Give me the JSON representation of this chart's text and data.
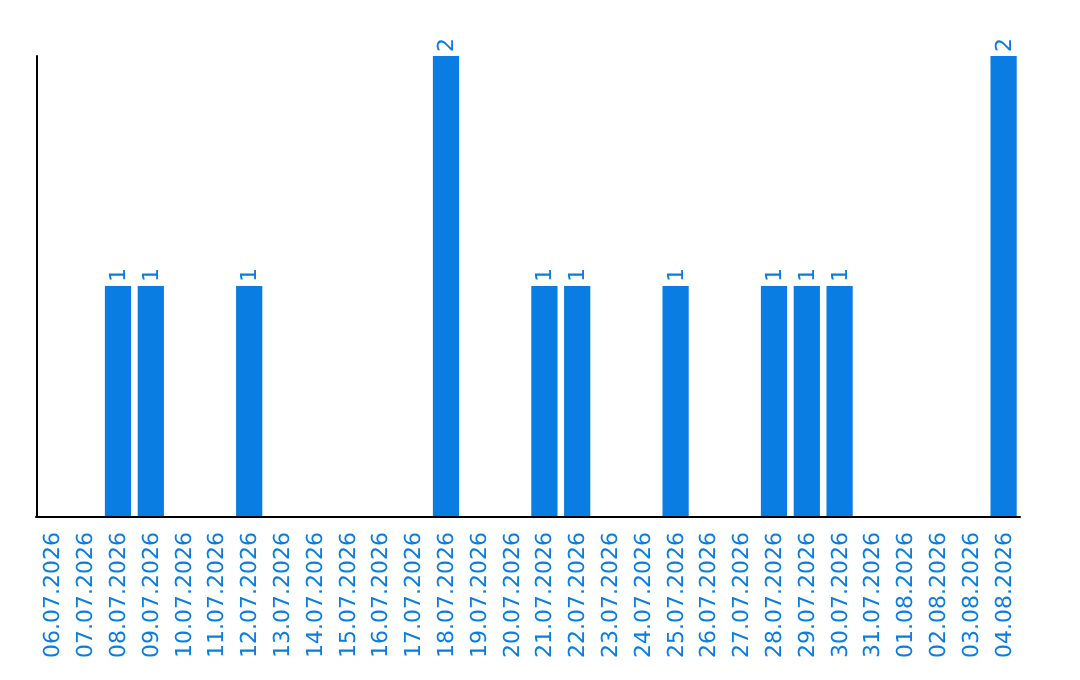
{
  "chart_data": {
    "type": "bar",
    "color": "#0a7de3",
    "categories": [
      "06.07.2026",
      "07.07.2026",
      "08.07.2026",
      "09.07.2026",
      "10.07.2026",
      "11.07.2026",
      "12.07.2026",
      "13.07.2026",
      "14.07.2026",
      "15.07.2026",
      "16.07.2026",
      "17.07.2026",
      "18.07.2026",
      "19.07.2026",
      "20.07.2026",
      "21.07.2026",
      "22.07.2026",
      "23.07.2026",
      "24.07.2026",
      "25.07.2026",
      "26.07.2026",
      "27.07.2026",
      "28.07.2026",
      "29.07.2026",
      "30.07.2026",
      "31.07.2026",
      "01.08.2026",
      "02.08.2026",
      "03.08.2026",
      "04.08.2026"
    ],
    "values": [
      0,
      0,
      1,
      1,
      0,
      0,
      1,
      0,
      0,
      0,
      0,
      0,
      2,
      0,
      0,
      1,
      1,
      0,
      0,
      1,
      0,
      0,
      1,
      1,
      1,
      0,
      0,
      0,
      0,
      2
    ],
    "value_labels": [
      null,
      null,
      "1",
      "1",
      null,
      null,
      "1",
      null,
      null,
      null,
      null,
      null,
      "2",
      null,
      null,
      "1",
      "1",
      null,
      null,
      "1",
      null,
      null,
      "1",
      "1",
      "1",
      null,
      null,
      null,
      null,
      "2"
    ],
    "grid": false
  }
}
